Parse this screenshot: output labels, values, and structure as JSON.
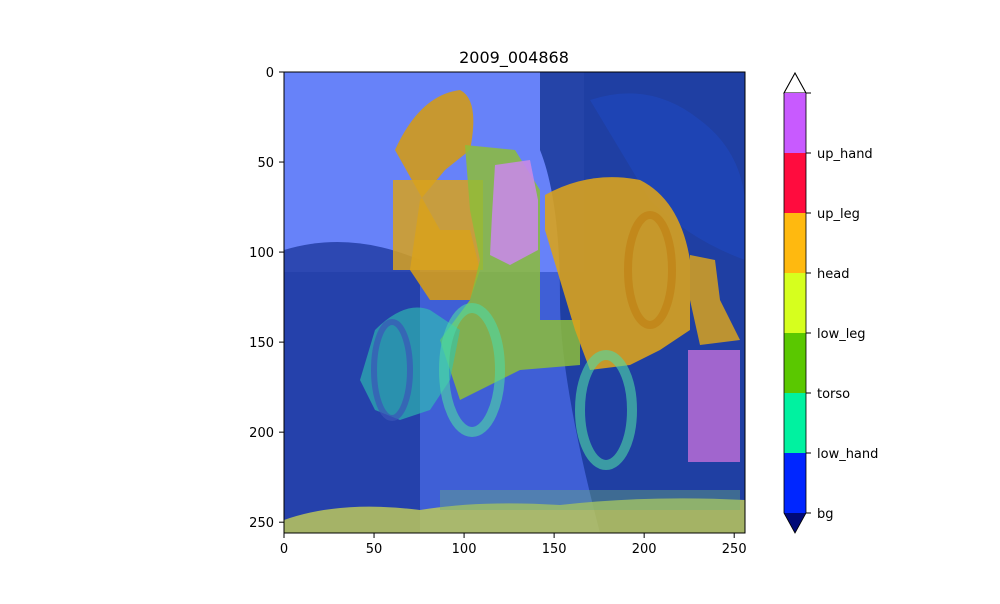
{
  "figure": {
    "title": "2009_004868",
    "x_ticks": [
      "0",
      "50",
      "100",
      "150",
      "200",
      "250"
    ],
    "y_ticks": [
      "0",
      "50",
      "100",
      "150",
      "200",
      "250"
    ]
  },
  "colorbar": {
    "labels": [
      "bg",
      "low_hand",
      "torso",
      "low_leg",
      "head",
      "up_leg",
      "up_hand"
    ],
    "colors": [
      "#0026ff",
      "#00f2a0",
      "#5ac800",
      "#d6ff1e",
      "#ffb90f",
      "#ff0c3e",
      "#c85aff"
    ],
    "under_color": "#000a78",
    "over_color": "#ffffff"
  },
  "overlay": {
    "background_tint": "#5c7cff",
    "dark_blue": "#2a3f96"
  }
}
